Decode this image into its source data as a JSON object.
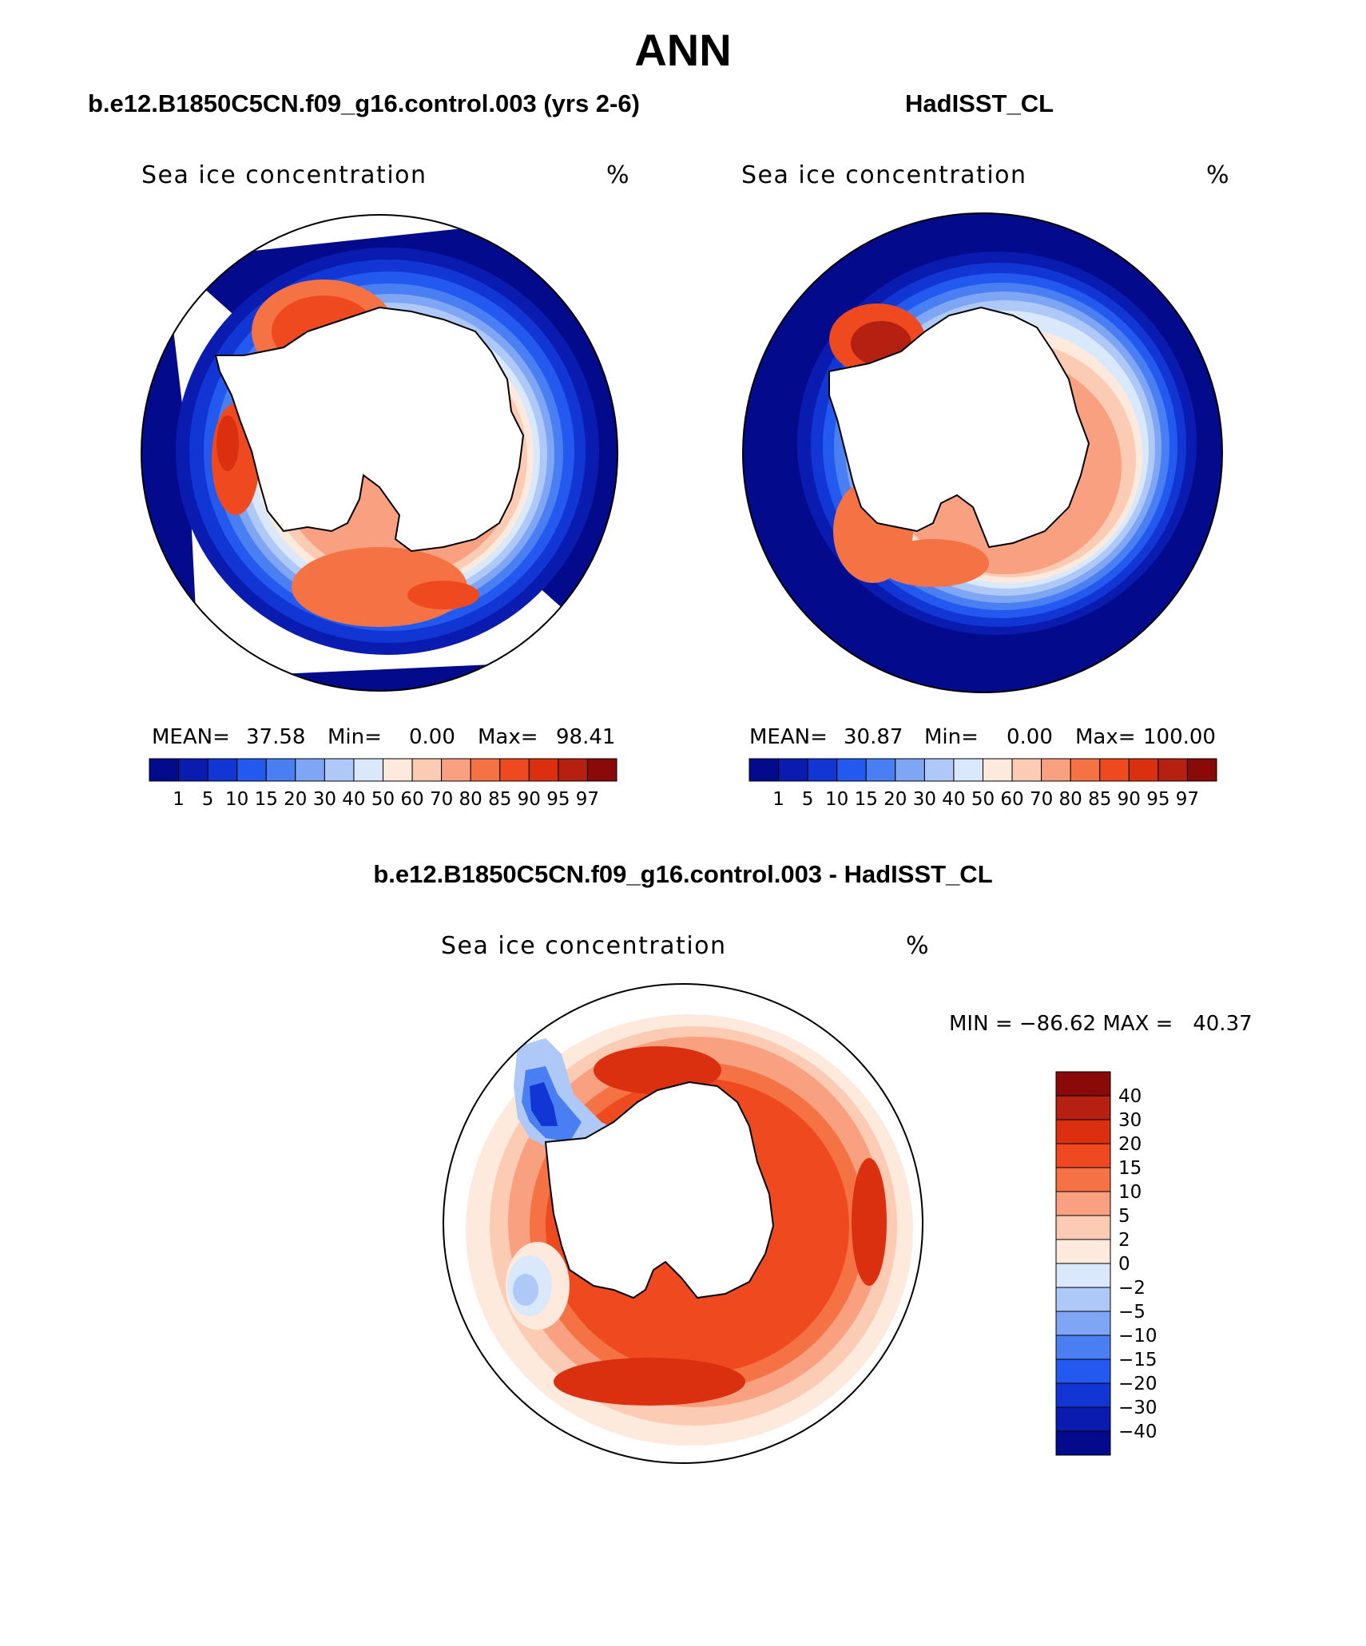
{
  "title": "ANN",
  "panels": [
    {
      "id": "model",
      "header": "b.e12.B1850C5CN.f09_g16.control.003 (yrs 2-6)",
      "variable": "Sea ice concentration",
      "units": "%",
      "stats": {
        "mean_label": "MEAN=",
        "mean": "37.58",
        "min_label": "Min=",
        "min": "0.00",
        "max_label": "Max=",
        "max": "98.41"
      },
      "colorbar": {
        "colors": [
          "#030a8c",
          "#0a1cb0",
          "#1236d4",
          "#2459ef",
          "#4a7ef3",
          "#7fa6f5",
          "#aec8f8",
          "#d9e8fb",
          "#fdeadd",
          "#fccbb4",
          "#f8a07f",
          "#f57245",
          "#ef4a1f",
          "#db3010",
          "#b52010",
          "#8a0a0a"
        ],
        "ticks": [
          "1",
          "5",
          "10",
          "15",
          "20",
          "30",
          "40",
          "50",
          "60",
          "70",
          "80",
          "85",
          "90",
          "95",
          "97"
        ]
      }
    },
    {
      "id": "obs",
      "header": "HadISST_CL",
      "variable": "Sea ice concentration",
      "units": "%",
      "stats": {
        "mean_label": "MEAN=",
        "mean": "30.87",
        "min_label": "Min=",
        "min": "0.00",
        "max_label": "Max=",
        "max": "100.00"
      },
      "colorbar": {
        "colors": [
          "#030a8c",
          "#0a1cb0",
          "#1236d4",
          "#2459ef",
          "#4a7ef3",
          "#7fa6f5",
          "#aec8f8",
          "#d9e8fb",
          "#fdeadd",
          "#fccbb4",
          "#f8a07f",
          "#f57245",
          "#ef4a1f",
          "#db3010",
          "#b52010",
          "#8a0a0a"
        ],
        "ticks": [
          "1",
          "5",
          "10",
          "15",
          "20",
          "30",
          "40",
          "50",
          "60",
          "70",
          "80",
          "85",
          "90",
          "95",
          "97"
        ]
      }
    }
  ],
  "difference": {
    "header": "b.e12.B1850C5CN.f09_g16.control.003 - HadISST_CL",
    "variable": "Sea ice concentration",
    "units": "%",
    "stats_text": "MIN = −86.62 MAX =   40.37",
    "colorbar": {
      "colors_top_to_bottom": [
        "#8a0a0a",
        "#b52010",
        "#db3010",
        "#ef4a1f",
        "#f57245",
        "#f8a07f",
        "#fccbb4",
        "#fdeadd",
        "#d9e8fb",
        "#aec8f8",
        "#7fa6f5",
        "#4a7ef3",
        "#2459ef",
        "#1236d4",
        "#0a1cb0",
        "#030a8c"
      ],
      "ticks": [
        "40",
        "30",
        "20",
        "15",
        "10",
        "5",
        "2",
        "0",
        "−2",
        "−5",
        "−10",
        "−15",
        "−20",
        "−30",
        "−40"
      ]
    }
  }
}
